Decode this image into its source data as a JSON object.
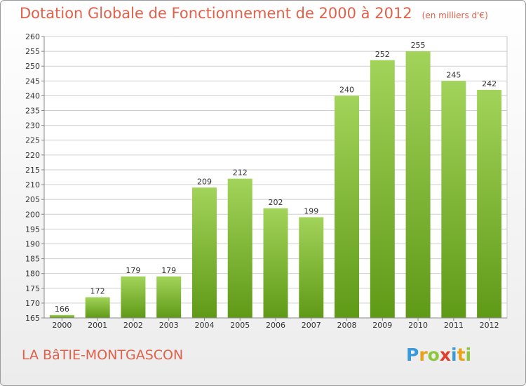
{
  "title": "Dotation Globale de Fonctionnement de 2000 à 2012",
  "subtitle": "(en milliers d'€)",
  "commune": "LA BâTIE-MONTGASCON",
  "logo": {
    "letters": [
      "P",
      "r",
      "o",
      "x",
      "i",
      "t",
      "i"
    ],
    "colors": [
      "#3a9ad9",
      "#e8a21a",
      "#8cc63f",
      "#e23c2c",
      "#3a9ad9",
      "#e8a21a",
      "#8cc63f"
    ]
  },
  "colors": {
    "bar_top": "#a2d35a",
    "bar_bottom": "#5f9a17",
    "text": "#e0604a",
    "grid": "#cfcfcf"
  },
  "chart_data": {
    "type": "bar",
    "categories": [
      "2000",
      "2001",
      "2002",
      "2003",
      "2004",
      "2005",
      "2006",
      "2007",
      "2008",
      "2009",
      "2010",
      "2011",
      "2012"
    ],
    "values": [
      166,
      172,
      179,
      179,
      209,
      212,
      202,
      199,
      240,
      252,
      255,
      245,
      242
    ],
    "ylim": [
      165,
      260
    ],
    "ytick_step": 5,
    "grid": true
  }
}
